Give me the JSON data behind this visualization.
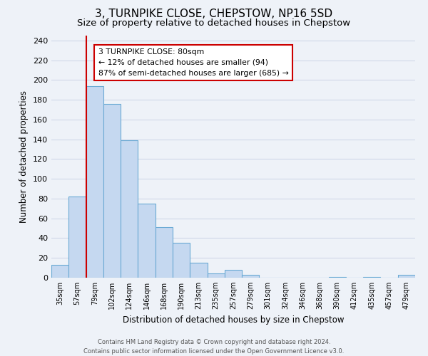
{
  "title": "3, TURNPIKE CLOSE, CHEPSTOW, NP16 5SD",
  "subtitle": "Size of property relative to detached houses in Chepstow",
  "xlabel": "Distribution of detached houses by size in Chepstow",
  "ylabel": "Number of detached properties",
  "bar_labels": [
    "35sqm",
    "57sqm",
    "79sqm",
    "102sqm",
    "124sqm",
    "146sqm",
    "168sqm",
    "190sqm",
    "213sqm",
    "235sqm",
    "257sqm",
    "279sqm",
    "301sqm",
    "324sqm",
    "346sqm",
    "368sqm",
    "390sqm",
    "412sqm",
    "435sqm",
    "457sqm",
    "479sqm"
  ],
  "bar_heights": [
    13,
    82,
    194,
    176,
    139,
    75,
    51,
    35,
    15,
    4,
    8,
    3,
    0,
    0,
    0,
    0,
    1,
    0,
    1,
    0,
    3
  ],
  "bar_color": "#c5d8f0",
  "bar_edge_color": "#6baad4",
  "property_line_color": "#cc0000",
  "property_line_idx": 1.5,
  "ylim": [
    0,
    245
  ],
  "yticks": [
    0,
    20,
    40,
    60,
    80,
    100,
    120,
    140,
    160,
    180,
    200,
    220,
    240
  ],
  "annotation_title": "3 TURNPIKE CLOSE: 80sqm",
  "annotation_line1": "← 12% of detached houses are smaller (94)",
  "annotation_line2": "87% of semi-detached houses are larger (685) →",
  "annotation_box_color": "#ffffff",
  "annotation_box_edge": "#cc0000",
  "footer_line1": "Contains HM Land Registry data © Crown copyright and database right 2024.",
  "footer_line2": "Contains public sector information licensed under the Open Government Licence v3.0.",
  "background_color": "#eef2f8",
  "grid_color": "#d0d8e8",
  "title_fontsize": 11,
  "subtitle_fontsize": 9.5
}
